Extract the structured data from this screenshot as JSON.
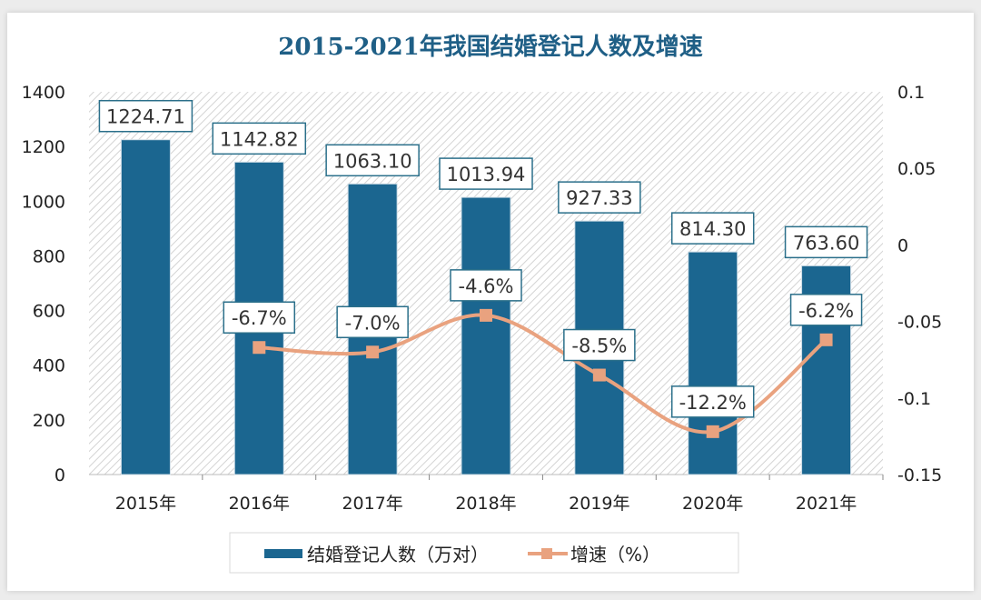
{
  "chart_data": {
    "type": "bar+line",
    "title": "2015-2021年我国结婚登记人数及增速",
    "categories": [
      "2015年",
      "2016年",
      "2017年",
      "2018年",
      "2019年",
      "2020年",
      "2021年"
    ],
    "series": [
      {
        "name": "结婚登记人数（万对）",
        "type": "bar",
        "axis": "left",
        "color": "#1b6690",
        "values": [
          1224.71,
          1142.82,
          1063.1,
          1013.94,
          927.33,
          814.3,
          763.6
        ],
        "labels": [
          "1224.71",
          "1142.82",
          "1063.10",
          "1013.94",
          "927.33",
          "814.30",
          "763.60"
        ]
      },
      {
        "name": "增速（%）",
        "type": "line",
        "axis": "right",
        "color": "#e9a27f",
        "values": [
          null,
          -0.067,
          -0.07,
          -0.046,
          -0.085,
          -0.122,
          -0.062
        ],
        "labels": [
          "",
          "-6.7%",
          "-7.0%",
          "-4.6%",
          "-8.5%",
          "-12.2%",
          "-6.2%"
        ]
      }
    ],
    "y_left": {
      "range": [
        0,
        1400
      ],
      "ticks": [
        "0",
        "200",
        "400",
        "600",
        "800",
        "1000",
        "1200",
        "1400"
      ]
    },
    "y_right": {
      "range": [
        -0.15,
        0.1
      ],
      "ticks": [
        "-0.15",
        "-0.1",
        "-0.05",
        "0",
        "0.05",
        "0.1"
      ]
    },
    "legend_position": "bottom",
    "grid": false,
    "colors": {
      "title": "#1f5f86",
      "label_border": "#2a6f8a",
      "hatch": "#d4d4d4"
    }
  }
}
